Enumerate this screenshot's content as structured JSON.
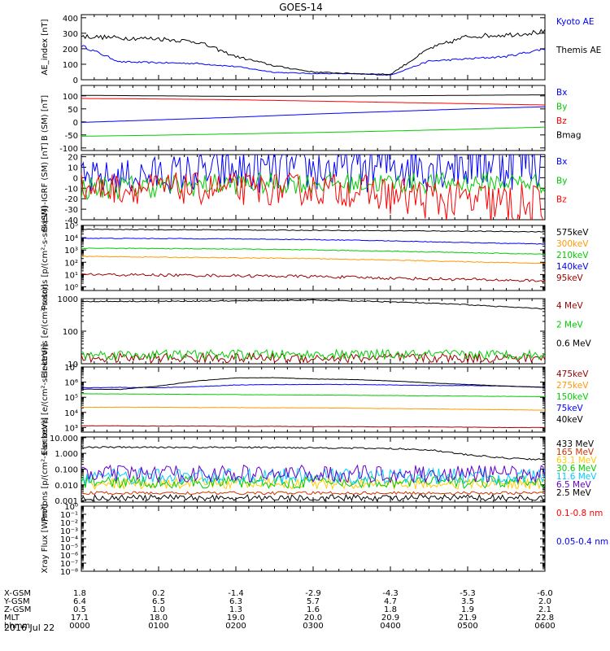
{
  "title": "GOES-14",
  "date_label": "2016 Jul 22",
  "chart_data": [
    {
      "type": "line",
      "ylabel": "AE_index [nT]",
      "scale": "linear",
      "ylim": [
        0,
        420
      ],
      "yticks": [
        0,
        100,
        200,
        300,
        400
      ],
      "yticklabels": [
        "0",
        "100",
        "200",
        "300",
        "400"
      ],
      "x_hours": [
        0,
        0.5,
        1.0,
        1.5,
        2.0,
        2.5,
        3.0,
        3.25,
        3.5,
        4.0,
        4.5,
        5.0,
        5.5,
        6.0
      ],
      "series": [
        {
          "name": "Kyoto AE",
          "color": "#0000ff",
          "noise": 0.04,
          "values": [
            220,
            115,
            110,
            105,
            85,
            48,
            40,
            40,
            38,
            30,
            120,
            135,
            150,
            200
          ]
        },
        {
          "name": "Themis AE",
          "color": "#000000",
          "noise": 0.05,
          "values": [
            280,
            270,
            265,
            245,
            150,
            90,
            50,
            45,
            40,
            35,
            200,
            280,
            290,
            310
          ]
        }
      ]
    },
    {
      "type": "line",
      "ylabel": "B (SM) [nT]",
      "scale": "linear",
      "ylim": [
        -110,
        140
      ],
      "yticks": [
        -100,
        -50,
        0,
        50,
        100
      ],
      "yticklabels": [
        "-100",
        "-50",
        "0",
        "50",
        "100"
      ],
      "x_hours": [
        0,
        1,
        2,
        3,
        4,
        5,
        6
      ],
      "series": [
        {
          "name": "Bx",
          "color": "#0000ff",
          "noise": 0,
          "values": [
            -2,
            8,
            18,
            30,
            40,
            50,
            58
          ]
        },
        {
          "name": "By",
          "color": "#00cc00",
          "noise": 0,
          "values": [
            -55,
            -51,
            -46,
            -41,
            -35,
            -28,
            -20
          ]
        },
        {
          "name": "Bz",
          "color": "#ff0000",
          "noise": 0,
          "values": [
            90,
            88,
            85,
            80,
            75,
            70,
            65
          ]
        },
        {
          "name": "Bmag",
          "color": "#000000",
          "noise": 0,
          "values": [
            102,
            100,
            98,
            99,
            100,
            102,
            104
          ]
        }
      ]
    },
    {
      "type": "line",
      "ylabel": "B (SM)-IGRF (SM) [nT]",
      "scale": "linear",
      "ylim": [
        -40,
        22
      ],
      "yticks": [
        -40,
        -30,
        -20,
        -10,
        0,
        10,
        20
      ],
      "yticklabels": [
        "-40",
        "-30",
        "-20",
        "-10",
        "0",
        "10",
        "20"
      ],
      "x_hours": [
        0,
        1,
        2,
        3,
        3.5,
        4,
        4.5,
        5,
        5.5,
        6
      ],
      "series": [
        {
          "name": "Bx",
          "color": "#0000ff",
          "noise": 0.8,
          "values": [
            -2,
            3,
            6,
            8,
            8,
            12,
            14,
            16,
            18,
            20
          ]
        },
        {
          "name": "By",
          "color": "#00cc00",
          "noise": 0.4,
          "values": [
            -10,
            -8,
            -6,
            -5,
            -5,
            -5,
            -5,
            -5,
            -4,
            -5
          ]
        },
        {
          "name": "Bz",
          "color": "#ff0000",
          "noise": 0.5,
          "values": [
            -10,
            -10,
            -11,
            -11,
            -12,
            -17,
            -20,
            -23,
            -27,
            -32
          ]
        }
      ]
    },
    {
      "type": "line",
      "ylabel": "Protons [p/(cm²-s-sr-keV)]",
      "scale": "log",
      "ylim": [
        0.5,
        100000
      ],
      "yticks": [
        1,
        10,
        100,
        1000,
        10000,
        100000
      ],
      "yticklabels": [
        "10⁰",
        "10¹",
        "10²",
        "10³",
        "10⁴",
        "10⁵"
      ],
      "x_hours": [
        0,
        1,
        2,
        3,
        4,
        5,
        6
      ],
      "series": [
        {
          "name": "575keV",
          "color": "#000000",
          "noise": 0.03,
          "values": [
            48000,
            45000,
            43000,
            40000,
            37000,
            34000,
            30000
          ]
        },
        {
          "name": "300keV",
          "color": "#ff9900",
          "noise": 0.03,
          "values": [
            300,
            260,
            230,
            200,
            150,
            110,
            80
          ]
        },
        {
          "name": "210keV",
          "color": "#00cc00",
          "noise": 0.03,
          "values": [
            1400,
            1300,
            1200,
            1000,
            800,
            600,
            450
          ]
        },
        {
          "name": "140keV",
          "color": "#0000ff",
          "noise": 0.03,
          "values": [
            9000,
            8500,
            8000,
            7000,
            5500,
            4000,
            3000
          ]
        },
        {
          "name": "95keV",
          "color": "#990000",
          "noise": 0.12,
          "values": [
            10,
            9,
            8,
            7,
            5,
            4,
            3
          ]
        }
      ]
    },
    {
      "type": "line",
      "ylabel": "Electrons [e/(cm²-s-sr)]",
      "scale": "log",
      "ylim": [
        10,
        1000
      ],
      "yticks": [
        10,
        100,
        1000
      ],
      "yticklabels": [
        "10",
        "100",
        "1000"
      ],
      "x_hours": [
        0,
        1,
        2,
        3,
        4,
        5,
        6
      ],
      "series": [
        {
          "name": "4 MeV",
          "color": "#990000",
          "noise": 0.15,
          "values": [
            15,
            15,
            15,
            15,
            15,
            15,
            15
          ]
        },
        {
          "name": "2 MeV",
          "color": "#00cc00",
          "noise": 0.15,
          "values": [
            19,
            19,
            19,
            19,
            19,
            19,
            19
          ]
        },
        {
          "name": "0.6 MeV",
          "color": "#000000",
          "noise": 0.015,
          "values": [
            820,
            830,
            850,
            900,
            800,
            650,
            480
          ]
        }
      ]
    },
    {
      "type": "line",
      "ylabel": "Electrons [e/(cm²-s-sr-keV)]",
      "scale": "log",
      "ylim": [
        500,
        10000000
      ],
      "yticks": [
        1000,
        10000,
        100000,
        1000000,
        10000000
      ],
      "yticklabels": [
        "10³",
        "10⁴",
        "10⁵",
        "10⁶",
        "10⁷"
      ],
      "x_hours": [
        0,
        0.5,
        1,
        1.5,
        2,
        2.5,
        3,
        3.5,
        4,
        4.5,
        5,
        5.5,
        6
      ],
      "series": [
        {
          "name": "475keV",
          "color": "#990000",
          "noise": 0.01,
          "values": [
            1300,
            1300,
            1250,
            1250,
            1200,
            1200,
            1150,
            1150,
            1100,
            1100,
            1050,
            1000,
            1000
          ]
        },
        {
          "name": "275keV",
          "color": "#ff9900",
          "noise": 0.01,
          "values": [
            22000,
            22000,
            22000,
            21000,
            21000,
            20000,
            20000,
            19000,
            18000,
            17000,
            16000,
            15000,
            14000
          ]
        },
        {
          "name": "150keV",
          "color": "#00cc00",
          "noise": 0.01,
          "values": [
            170000,
            165000,
            160000,
            155000,
            150000,
            145000,
            140000,
            135000,
            130000,
            125000,
            120000,
            115000,
            110000
          ]
        },
        {
          "name": "75keV",
          "color": "#0000ff",
          "noise": 0.015,
          "values": [
            430000,
            450000,
            430000,
            500000,
            650000,
            700000,
            700000,
            700000,
            650000,
            600000,
            600000,
            550000,
            450000
          ]
        },
        {
          "name": "40keV",
          "color": "#000000",
          "noise": 0.01,
          "values": [
            350000,
            330000,
            550000,
            1200000,
            1900000,
            2000000,
            1600000,
            1500000,
            1200000,
            900000,
            700000,
            550000,
            450000
          ]
        }
      ]
    },
    {
      "type": "line",
      "ylabel": "Protons [p/(cm²-s-sr-keV)]",
      "scale": "log",
      "ylim": [
        0.0008,
        11
      ],
      "yticks": [
        0.001,
        0.01,
        0.1,
        1,
        10
      ],
      "yticklabels": [
        "0.001",
        "0.010",
        "0.100",
        "1.000",
        "10.000"
      ],
      "x_hours": [
        0,
        1,
        2,
        3,
        4,
        4.5,
        5,
        5.5,
        6
      ],
      "series": [
        {
          "name": "433 MeV",
          "color": "#000000",
          "noise": 0.05,
          "values": [
            2.5,
            2.4,
            2.4,
            2.3,
            2.0,
            1.7,
            0.8,
            0.5,
            0.4
          ]
        },
        {
          "name": "165 MeV",
          "color": "#cc3300",
          "noise": 0.1,
          "values": [
            0.003,
            0.003,
            0.003,
            0.003,
            0.003,
            0.003,
            0.003,
            0.003,
            0.003
          ]
        },
        {
          "name": "63.1 MeV",
          "color": "#ffcc00",
          "noise": 0.35,
          "values": [
            0.012,
            0.012,
            0.012,
            0.012,
            0.012,
            0.012,
            0.012,
            0.012,
            0.012
          ]
        },
        {
          "name": "30.6 MeV",
          "color": "#00cc00",
          "noise": 0.4,
          "values": [
            0.015,
            0.015,
            0.015,
            0.015,
            0.015,
            0.015,
            0.015,
            0.015,
            0.015
          ]
        },
        {
          "name": "11.6 MeV",
          "color": "#00ccff",
          "noise": 0.5,
          "values": [
            0.035,
            0.035,
            0.035,
            0.035,
            0.035,
            0.035,
            0.035,
            0.035,
            0.035
          ]
        },
        {
          "name": "6.5 MeV",
          "color": "#6600cc",
          "noise": 0.55,
          "values": [
            0.05,
            0.05,
            0.05,
            0.05,
            0.05,
            0.05,
            0.05,
            0.05,
            0.05
          ]
        },
        {
          "name": "2.5 MeV",
          "color": "#000000",
          "noise": 0.2,
          "values": [
            0.0015,
            0.0015,
            0.0015,
            0.0015,
            0.0015,
            0.0015,
            0.0015,
            0.0015,
            0.0015
          ]
        }
      ]
    },
    {
      "type": "line",
      "ylabel": "Xray Flux [W/m²]",
      "scale": "log",
      "ylim": [
        1e-08,
        1
      ],
      "yticks": [
        1e-08,
        1e-07,
        1e-06,
        1e-05,
        0.0001,
        0.001,
        0.01,
        0.1,
        1
      ],
      "yticklabels": [
        "10⁻⁸",
        "10⁻⁷",
        "10⁻⁶",
        "10⁻⁵",
        "10⁻⁴",
        "10⁻³",
        "10⁻²",
        "10⁻¹",
        "10⁰"
      ],
      "x_hours": [],
      "series": [
        {
          "name": "0.1-0.8 nm",
          "color": "#ff0000",
          "noise": 0,
          "values": []
        },
        {
          "name": "0.05-0.4 nm",
          "color": "#0000ff",
          "noise": 0,
          "values": []
        }
      ]
    }
  ],
  "ephemeris": {
    "rows": [
      {
        "label": "X-GSM",
        "values": [
          "1.8",
          "0.2",
          "-1.4",
          "-2.9",
          "-4.3",
          "-5.3",
          "-6.0"
        ]
      },
      {
        "label": "Y-GSM",
        "values": [
          "6.4",
          "6.5",
          "6.3",
          "5.7",
          "4.7",
          "3.5",
          "2.0"
        ]
      },
      {
        "label": "Z-GSM",
        "values": [
          "0.5",
          "1.0",
          "1.3",
          "1.6",
          "1.8",
          "1.9",
          "2.1"
        ]
      },
      {
        "label": "MLT",
        "values": [
          "17.1",
          "18.0",
          "19.0",
          "20.0",
          "20.9",
          "21.9",
          "22.8"
        ]
      },
      {
        "label": "hhmm",
        "values": [
          "0000",
          "0100",
          "0200",
          "0300",
          "0400",
          "0500",
          "0600"
        ]
      }
    ]
  }
}
